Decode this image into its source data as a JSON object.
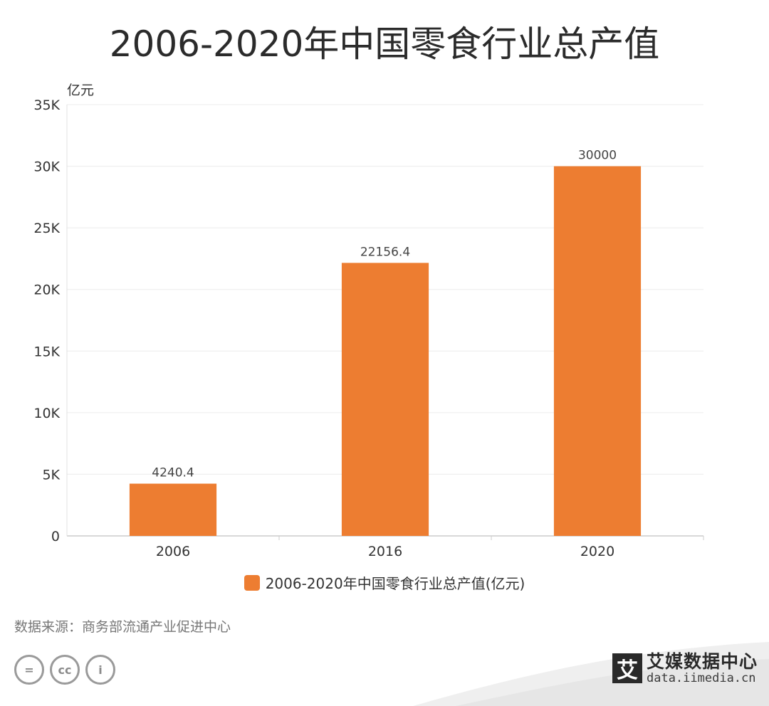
{
  "chart_data": {
    "type": "bar",
    "title": "2006-2020年中国零食行业总产值",
    "unit_label": "亿元",
    "categories": [
      "2006",
      "2016",
      "2020"
    ],
    "series": [
      {
        "name": "2006-2020年中国零食行业总产值(亿元)",
        "values": [
          4240.4,
          22156.4,
          30000
        ],
        "value_labels": [
          "4240.4",
          "22156.4",
          "30000"
        ],
        "color": "#ED7D31"
      }
    ],
    "ylim": [
      0,
      35000
    ],
    "yticks": [
      0,
      5000,
      10000,
      15000,
      20000,
      25000,
      30000,
      35000
    ],
    "ytick_labels": [
      "0",
      "5K",
      "10K",
      "15K",
      "20K",
      "25K",
      "30K",
      "35K"
    ],
    "grid": true,
    "legend_position": "bottom"
  },
  "source": "数据来源：商务部流通产业促进中心",
  "license_icons": [
    "equals-icon",
    "cc-icon",
    "person-icon"
  ],
  "license_glyphs": [
    "=",
    "cc",
    "i"
  ],
  "brand": {
    "mark": "艾",
    "name": "艾媒数据中心",
    "url": "data.iimedia.cn"
  }
}
